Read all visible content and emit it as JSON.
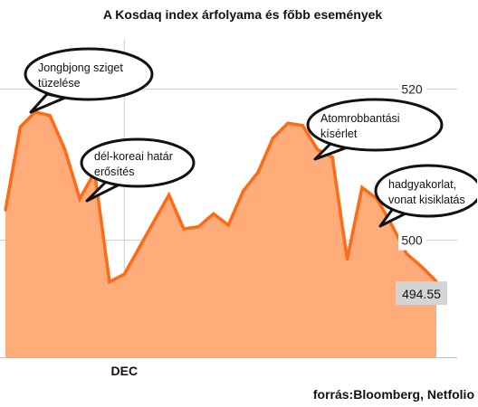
{
  "chart_data": {
    "type": "area",
    "title": "A Kosdaq index árfolyama és főbb események",
    "source": "forrás:Bloomberg, Netfolio",
    "xlabel": "",
    "ylabel": "",
    "x_ticks": [
      {
        "label": "DEC",
        "index": 8
      }
    ],
    "y_ticks": [
      500,
      520
    ],
    "ylim": [
      484.5,
      527.5
    ],
    "grid": true,
    "values": [
      504,
      515,
      517,
      516.5,
      512,
      505.5,
      509,
      494.5,
      495.5,
      499,
      502.5,
      506,
      501.5,
      501.8,
      503.5,
      502,
      506.5,
      509,
      513.5,
      515.5,
      515.2,
      512,
      511,
      497.5,
      507,
      505.5,
      502,
      498.2,
      496.5,
      494.55
    ],
    "last_value": {
      "label": "494.55",
      "value": 494.55
    },
    "colors": {
      "line": "#ff6a13",
      "fill": "#ffab7a",
      "grid": "#cccccc"
    },
    "annotations": [
      {
        "lines": [
          "Jongbjong sziget",
          "tüzelése"
        ],
        "index": 2
      },
      {
        "lines": [
          "dél-koreai határ",
          "erősítés"
        ],
        "index": 5
      },
      {
        "lines": [
          "Atomrobbantási",
          "kísérlet"
        ],
        "index": 20
      },
      {
        "lines": [
          "hadgyakorlat,",
          "vonat kisiklatás"
        ],
        "index": 24
      }
    ]
  }
}
